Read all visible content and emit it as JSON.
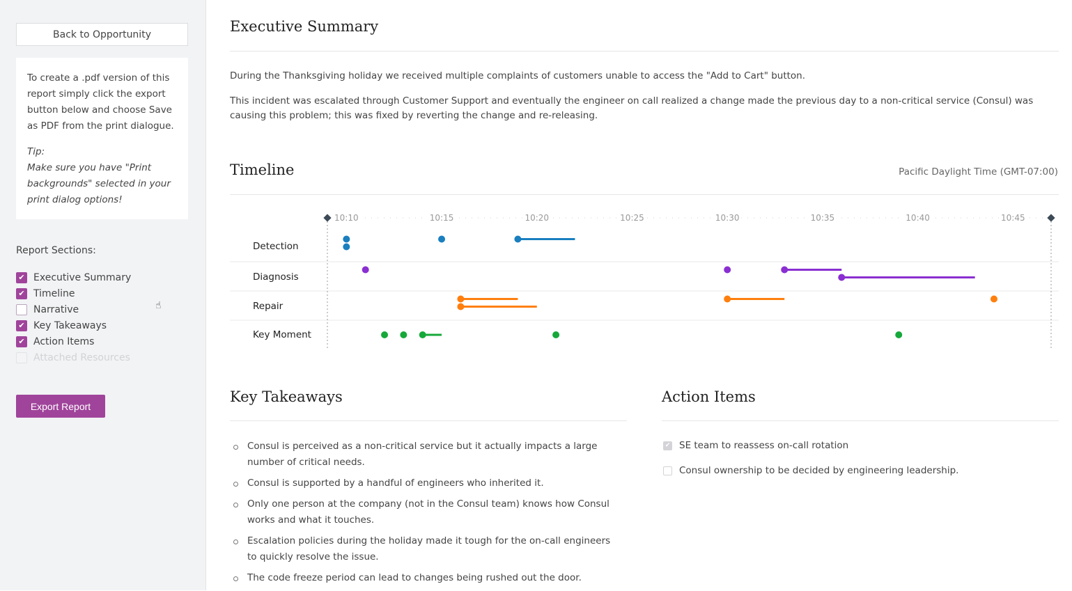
{
  "sidebar": {
    "back_label": "Back to Opportunity",
    "info_text": "To create a .pdf version of this report simply click the export button below and choose Save as PDF from the print dialogue.",
    "tip_title": "Tip:",
    "tip_text": "Make sure you have \"Print backgrounds\" selected in your print dialog options!",
    "sections_label": "Report Sections:",
    "sections": [
      {
        "label": "Executive Summary",
        "checked": true,
        "disabled": false
      },
      {
        "label": "Timeline",
        "checked": true,
        "disabled": false
      },
      {
        "label": "Narrative",
        "checked": false,
        "disabled": false
      },
      {
        "label": "Key Takeaways",
        "checked": true,
        "disabled": false
      },
      {
        "label": "Action Items",
        "checked": true,
        "disabled": false
      },
      {
        "label": "Attached Resources",
        "checked": false,
        "disabled": true
      }
    ],
    "export_label": "Export Report"
  },
  "summary": {
    "title": "Executive Summary",
    "p1": "During the Thanksgiving holiday we received multiple complaints of customers unable to access the \"Add to Cart\" button.",
    "p2": "This incident was escalated through Customer Support and eventually the engineer on call realized a change made the previous day to a non-critical service (Consul) was causing this problem; this was fixed by reverting the change and re-releasing."
  },
  "timeline": {
    "title": "Timeline",
    "timezone": "Pacific Daylight Time (GMT-07:00)"
  },
  "chart_data": {
    "type": "timeline",
    "x_range": [
      "10:09",
      "10:47"
    ],
    "ticks": [
      "10:10",
      "10:15",
      "10:20",
      "10:25",
      "10:30",
      "10:35",
      "10:40",
      "10:45"
    ],
    "rows": [
      {
        "name": "Detection",
        "color": "#1a7fbf",
        "events": [
          {
            "start": "10:10"
          },
          {
            "start": "10:10"
          },
          {
            "start": "10:15"
          },
          {
            "start": "10:19",
            "end": "10:22"
          }
        ]
      },
      {
        "name": "Diagnosis",
        "color": "#8a2fd1",
        "events": [
          {
            "start": "10:11"
          },
          {
            "start": "10:30"
          },
          {
            "start": "10:33",
            "end": "10:36"
          },
          {
            "start": "10:36",
            "end": "10:43"
          }
        ]
      },
      {
        "name": "Repair",
        "color": "#ff7f0e",
        "events": [
          {
            "start": "10:16",
            "end": "10:19"
          },
          {
            "start": "10:16",
            "end": "10:20"
          },
          {
            "start": "10:30",
            "end": "10:33"
          },
          {
            "start": "10:44"
          }
        ]
      },
      {
        "name": "Key Moment",
        "color": "#17a83a",
        "events": [
          {
            "start": "10:12"
          },
          {
            "start": "10:13"
          },
          {
            "start": "10:14",
            "end": "10:15"
          },
          {
            "start": "10:21"
          },
          {
            "start": "10:39"
          }
        ]
      }
    ]
  },
  "takeaways": {
    "title": "Key Takeaways",
    "items": [
      "Consul is perceived as a non-critical service but it actually impacts a large number of critical needs.",
      "Consul is supported by a handful of engineers who inherited it.",
      "Only one person at the company (not in the Consul team) knows how Consul works and what it touches.",
      "Escalation policies during the holiday made it tough for the on-call engineers to quickly resolve the issue.",
      "The code freeze period can lead to changes being rushed out the door."
    ]
  },
  "actions": {
    "title": "Action Items",
    "items": [
      {
        "label": "SE team to reassess on-call rotation",
        "checked": true
      },
      {
        "label": "Consul ownership to be decided by engineering leadership.",
        "checked": false
      }
    ]
  }
}
